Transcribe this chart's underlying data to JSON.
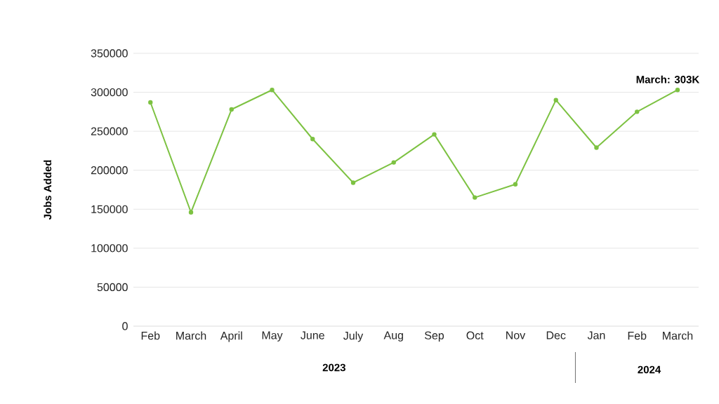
{
  "chart_data": {
    "type": "line",
    "ylabel": "Jobs Added",
    "categories": [
      "Feb",
      "March",
      "April",
      "May",
      "June",
      "July",
      "Aug",
      "Sep",
      "Oct",
      "Nov",
      "Dec",
      "Jan",
      "Feb",
      "March"
    ],
    "series": [
      {
        "color": "#7dc242",
        "values": [
          287000,
          146000,
          278000,
          303000,
          240000,
          184000,
          210000,
          246000,
          165000,
          182000,
          290000,
          229000,
          275000,
          303000
        ]
      }
    ],
    "ylim": [
      0,
      350000
    ],
    "yticks": [
      0,
      50000,
      100000,
      150000,
      200000,
      250000,
      300000,
      350000
    ],
    "grid": "y",
    "marker": "circle",
    "line_style": "solid",
    "annotations": [
      "March: 303K",
      "2023",
      "2024"
    ]
  }
}
